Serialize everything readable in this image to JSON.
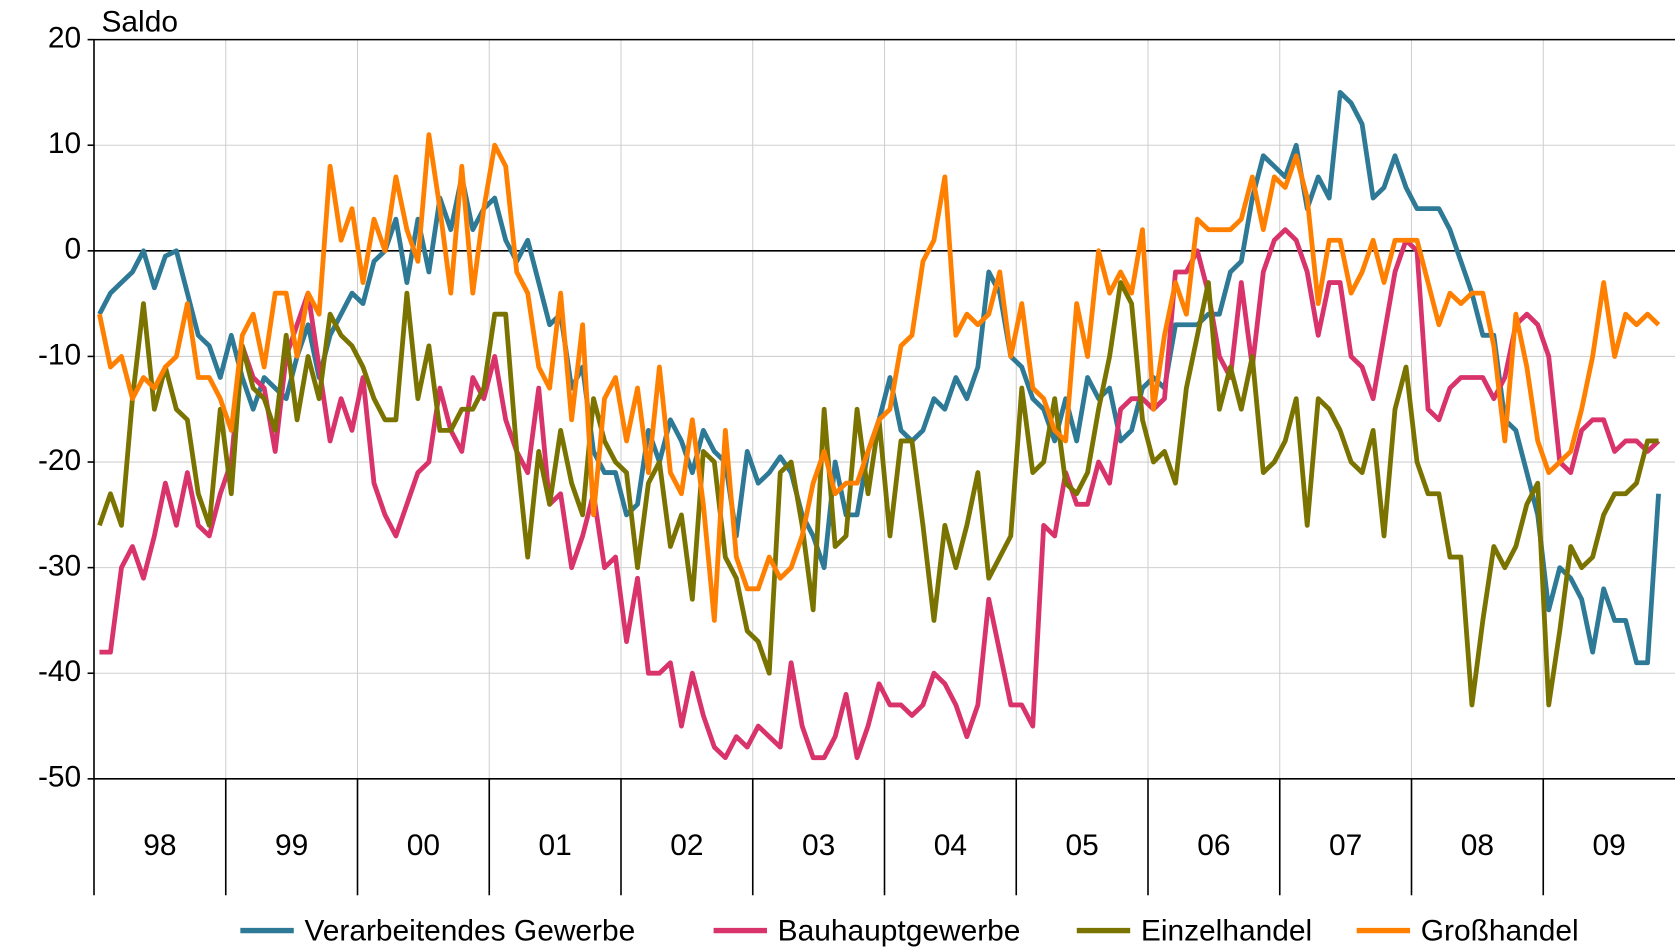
{
  "chart_data": {
    "type": "line",
    "y_label": "Saldo",
    "categories": [
      "98",
      null,
      null,
      null,
      null,
      null,
      null,
      null,
      null,
      null,
      null,
      null,
      "99",
      null,
      null,
      null,
      null,
      null,
      null,
      null,
      null,
      null,
      null,
      null,
      "00",
      null,
      null,
      null,
      null,
      null,
      null,
      null,
      null,
      null,
      null,
      null,
      "01",
      null,
      null,
      null,
      null,
      null,
      null,
      null,
      null,
      null,
      null,
      null,
      "02",
      null,
      null,
      null,
      null,
      null,
      null,
      null,
      null,
      null,
      null,
      null,
      "03",
      null,
      null,
      null,
      null,
      null,
      null,
      null,
      null,
      null,
      null,
      null,
      "04",
      null,
      null,
      null,
      null,
      null,
      null,
      null,
      null,
      null,
      null,
      null,
      "05",
      null,
      null,
      null,
      null,
      null,
      null,
      null,
      null,
      null,
      null,
      null,
      "06",
      null,
      null,
      null,
      null,
      null,
      null,
      null,
      null,
      null,
      null,
      null,
      "07",
      null,
      null,
      null,
      null,
      null,
      null,
      null,
      null,
      null,
      null,
      null,
      "08",
      null,
      null,
      null,
      null,
      null,
      null,
      null,
      null,
      null,
      null,
      null,
      "09",
      null,
      null,
      null,
      null,
      null,
      null,
      null,
      null,
      null,
      null,
      null
    ],
    "series": [
      {
        "name": "Verarbeitendes Gewerbe",
        "color": "#2e7a96",
        "values": [
          -6,
          -4,
          -3,
          -2,
          0,
          -3.5,
          -0.5,
          0,
          -4,
          -8,
          -9,
          -12,
          -8,
          -12,
          -15,
          -12,
          -13,
          -14,
          -10,
          -7,
          -12,
          -8,
          -6,
          -4,
          -5,
          -1,
          0,
          3,
          -3,
          3,
          -2,
          5,
          2,
          7,
          2,
          4,
          5,
          1,
          -1,
          1,
          -3,
          -7,
          -6,
          -13,
          -11,
          -19,
          -21,
          -21,
          -25,
          -24,
          -17,
          -20,
          -16,
          -18,
          -21,
          -17,
          -19,
          -20,
          -27,
          -19,
          -22,
          -21,
          -19.5,
          -21,
          -25,
          -27,
          -30,
          -20,
          -25,
          -25,
          -19,
          -16,
          -12,
          -17,
          -18,
          -17,
          -14,
          -15,
          -12,
          -14,
          -11,
          -2,
          -4,
          -10,
          -11,
          -14,
          -15,
          -18,
          -14,
          -18,
          -12,
          -14,
          -13,
          -18,
          -17,
          -13,
          -12,
          -13,
          -7,
          -7,
          -7,
          -6,
          -6,
          -2,
          -1,
          5,
          9,
          8,
          7,
          10,
          4,
          7,
          5,
          15,
          14,
          12,
          5,
          6,
          9,
          6,
          4,
          4,
          4,
          2,
          -1,
          -4,
          -8,
          -8,
          -16,
          -17,
          -21,
          -25,
          -34,
          -30,
          -31,
          -33,
          -38,
          -32,
          -35,
          -35,
          -39,
          -39,
          -23,
          null
        ]
      },
      {
        "name": "Bauhauptgewerbe",
        "color": "#d9336b",
        "values": [
          -38,
          -38,
          -30,
          -28,
          -31,
          -27,
          -22,
          -26,
          -21,
          -26,
          -27,
          -23,
          -20,
          -9,
          -12,
          -13,
          -19,
          -10,
          -7,
          -4,
          -11,
          -18,
          -14,
          -17,
          -12,
          -22,
          -25,
          -27,
          -24,
          -21,
          -20,
          -13,
          -17,
          -19,
          -12,
          -14,
          -10,
          -16,
          -19,
          -21,
          -13,
          -24,
          -23,
          -30,
          -27,
          -23,
          -30,
          -29,
          -37,
          -31,
          -40,
          -40,
          -39,
          -45,
          -40,
          -44,
          -47,
          -48,
          -46,
          -47,
          -45,
          -46,
          -47,
          -39,
          -45,
          -48,
          -48,
          -46,
          -42,
          -48,
          -45,
          -41,
          -43,
          -43,
          -44,
          -43,
          -40,
          -41,
          -43,
          -46,
          -43,
          -33,
          -38,
          -43,
          -43,
          -45,
          -26,
          -27,
          -21,
          -24,
          -24,
          -20,
          -22,
          -15,
          -14,
          -14,
          -15,
          -14,
          -2,
          -2,
          0,
          -4,
          -10,
          -12,
          -3,
          -11,
          -2,
          1,
          2,
          1,
          -2,
          -8,
          -3,
          -3,
          -10,
          -11,
          -14,
          -8,
          -2,
          1,
          0,
          -15,
          -16,
          -13,
          -12,
          -12,
          -12,
          -14,
          -12,
          -7,
          -6,
          -7,
          -10,
          -20,
          -21,
          -17,
          -16,
          -16,
          -19,
          -18,
          -18,
          -19,
          -18,
          null
        ]
      },
      {
        "name": "Einzelhandel",
        "color": "#7a7300",
        "values": [
          -26,
          -23,
          -26,
          -14,
          -5,
          -15,
          -11,
          -15,
          -16,
          -23,
          -26,
          -15,
          -23,
          -9,
          -13,
          -14,
          -17,
          -8,
          -16,
          -10,
          -14,
          -6,
          -8,
          -9,
          -11,
          -14,
          -16,
          -16,
          -4,
          -14,
          -9,
          -17,
          -17,
          -15,
          -15,
          -13,
          -6,
          -6,
          -19,
          -29,
          -19,
          -24,
          -17,
          -22,
          -25,
          -14,
          -18,
          -20,
          -21,
          -30,
          -22,
          -20,
          -28,
          -25,
          -33,
          -19,
          -20,
          -29,
          -31,
          -36,
          -37,
          -40,
          -21,
          -20,
          -26,
          -34,
          -15,
          -28,
          -27,
          -15,
          -23,
          -16,
          -27,
          -18,
          -18,
          -26,
          -35,
          -26,
          -30,
          -26,
          -21,
          -31,
          -29,
          -27,
          -13,
          -21,
          -20,
          -14,
          -22,
          -23,
          -21,
          -15,
          -10,
          -3,
          -5,
          -16,
          -20,
          -19,
          -22,
          -13,
          -8,
          -3,
          -15,
          -11,
          -15,
          -10,
          -21,
          -20,
          -18,
          -14,
          -26,
          -14,
          -15,
          -17,
          -20,
          -21,
          -17,
          -27,
          -15,
          -11,
          -20,
          -23,
          -23,
          -29,
          -29,
          -43,
          -35,
          -28,
          -30,
          -28,
          -24,
          -22,
          -43,
          -36,
          -28,
          -30,
          -29,
          -25,
          -23,
          -23,
          -22,
          -18,
          -18,
          null
        ]
      },
      {
        "name": "Großhandel",
        "color": "#ff8000",
        "values": [
          -6,
          -11,
          -10,
          -14,
          -12,
          -13,
          -11,
          -10,
          -5,
          -12,
          -12,
          -14,
          -17,
          -8,
          -6,
          -11,
          -4,
          -4,
          -10,
          -4,
          -6,
          8,
          1,
          4,
          -3,
          3,
          0,
          7,
          2,
          -1,
          11,
          4,
          -4,
          8,
          -4,
          4,
          10,
          8,
          -2,
          -4,
          -11,
          -13,
          -4,
          -16,
          -7,
          -25,
          -14,
          -12,
          -18,
          -13,
          -21,
          -11,
          -21,
          -23,
          -16,
          -24,
          -35,
          -17,
          -29,
          -32,
          -32,
          -29,
          -31,
          -30,
          -27,
          -22,
          -19,
          -23,
          -22,
          -22,
          -19,
          -16,
          -15,
          -9,
          -8,
          -1,
          1,
          7,
          -8,
          -6,
          -7,
          -6,
          -2,
          -10,
          -5,
          -13,
          -14,
          -17,
          -18,
          -5,
          -10,
          0,
          -4,
          -2,
          -4,
          2,
          -15,
          -8,
          -3,
          -6,
          3,
          2,
          2,
          2,
          3,
          7,
          2,
          7,
          6,
          9,
          5,
          -5,
          1,
          1,
          -4,
          -2,
          1,
          -3,
          1,
          1,
          1,
          -3,
          -7,
          -4,
          -5,
          -4,
          -4,
          -9,
          -18,
          -6,
          -11,
          -18,
          -21,
          -20,
          -19,
          -15,
          -10,
          -3,
          -10,
          -6,
          -7,
          -6,
          -7,
          null
        ]
      }
    ],
    "ylim": [
      -50,
      20
    ],
    "yticks": [
      -50,
      -40,
      -30,
      -20,
      -10,
      0,
      10,
      20
    ],
    "grid": true
  }
}
